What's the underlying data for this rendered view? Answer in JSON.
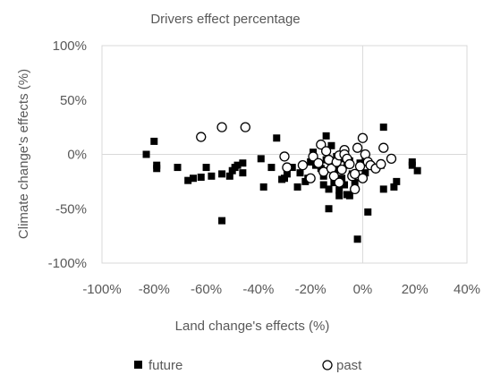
{
  "chart_data": {
    "type": "scatter",
    "title": "Drivers effect percentage",
    "xlabel": "Land change's effects (%)",
    "ylabel": "Climate change's effects (%)",
    "xlim": [
      -100,
      40
    ],
    "ylim": [
      -100,
      100
    ],
    "xticks": [
      "-100%",
      "-80%",
      "-60%",
      "-40%",
      "-20%",
      "0%",
      "20%",
      "40%"
    ],
    "yticks": [
      "100%",
      "50%",
      "0%",
      "-50%",
      "-100%"
    ],
    "grid": false,
    "legend_position": "bottom",
    "series": [
      {
        "name": "future",
        "marker": "filled-square",
        "color": "#000000",
        "points": [
          [
            -83,
            0
          ],
          [
            -80,
            12
          ],
          [
            -79,
            -10
          ],
          [
            -79,
            -13
          ],
          [
            -71,
            -12
          ],
          [
            -67,
            -24
          ],
          [
            -65,
            -22
          ],
          [
            -62,
            -21
          ],
          [
            -60,
            -12
          ],
          [
            -58,
            -20
          ],
          [
            -54,
            -18
          ],
          [
            -54,
            -61
          ],
          [
            -51,
            -20
          ],
          [
            -50,
            -15
          ],
          [
            -49,
            -12
          ],
          [
            -48,
            -10
          ],
          [
            -46,
            -8
          ],
          [
            -46,
            -17
          ],
          [
            -39,
            -4
          ],
          [
            -38,
            -30
          ],
          [
            -35,
            -12
          ],
          [
            -33,
            15
          ],
          [
            -31,
            -23
          ],
          [
            -30,
            -22
          ],
          [
            -29,
            -18
          ],
          [
            -27,
            -12
          ],
          [
            -25,
            -30
          ],
          [
            -24,
            -17
          ],
          [
            -22,
            -25
          ],
          [
            -21,
            -22
          ],
          [
            -20,
            -7
          ],
          [
            -19,
            2
          ],
          [
            -18,
            -10
          ],
          [
            -16,
            -13
          ],
          [
            -15,
            -20
          ],
          [
            -15,
            -28
          ],
          [
            -14,
            -5
          ],
          [
            -14,
            17
          ],
          [
            -13,
            -32
          ],
          [
            -13,
            -50
          ],
          [
            -12,
            8
          ],
          [
            -11,
            -26
          ],
          [
            -10,
            -2
          ],
          [
            -10,
            -14
          ],
          [
            -9,
            -33
          ],
          [
            -9,
            -38
          ],
          [
            -8,
            -4
          ],
          [
            -8,
            -22
          ],
          [
            -7,
            -28
          ],
          [
            -6,
            -10
          ],
          [
            -6,
            -37
          ],
          [
            -5,
            -6
          ],
          [
            -5,
            -38
          ],
          [
            -4,
            -18
          ],
          [
            -3,
            -26
          ],
          [
            -2,
            -78
          ],
          [
            -1,
            -8
          ],
          [
            1,
            -5
          ],
          [
            1,
            -17
          ],
          [
            2,
            -53
          ],
          [
            7,
            -10
          ],
          [
            8,
            25
          ],
          [
            8,
            -32
          ],
          [
            12,
            -30
          ],
          [
            13,
            -25
          ],
          [
            19,
            -7
          ],
          [
            19,
            -10
          ],
          [
            21,
            -15
          ]
        ]
      },
      {
        "name": "past",
        "marker": "open-circle",
        "color": "#000000",
        "points": [
          [
            -62,
            16
          ],
          [
            -54,
            25
          ],
          [
            -45,
            25
          ],
          [
            -30,
            -2
          ],
          [
            -29,
            -12
          ],
          [
            -23,
            -10
          ],
          [
            -20,
            -22
          ],
          [
            -19,
            -2
          ],
          [
            -17,
            -8
          ],
          [
            -16,
            9
          ],
          [
            -15,
            -16
          ],
          [
            -14,
            3
          ],
          [
            -13,
            -5
          ],
          [
            -12,
            -13
          ],
          [
            -11,
            -20
          ],
          [
            -10,
            -7
          ],
          [
            -9,
            -1
          ],
          [
            -9,
            -26
          ],
          [
            -8,
            -14
          ],
          [
            -7,
            4
          ],
          [
            -7,
            0
          ],
          [
            -6,
            -4
          ],
          [
            -5,
            -9
          ],
          [
            -4,
            -20
          ],
          [
            -3,
            -32
          ],
          [
            -3,
            -18
          ],
          [
            -2,
            6
          ],
          [
            -1,
            -11
          ],
          [
            0,
            -22
          ],
          [
            0,
            15
          ],
          [
            1,
            0
          ],
          [
            2,
            -7
          ],
          [
            3,
            -10
          ],
          [
            5,
            -13
          ],
          [
            7,
            -9
          ],
          [
            8,
            6
          ],
          [
            11,
            -4
          ]
        ]
      }
    ]
  }
}
